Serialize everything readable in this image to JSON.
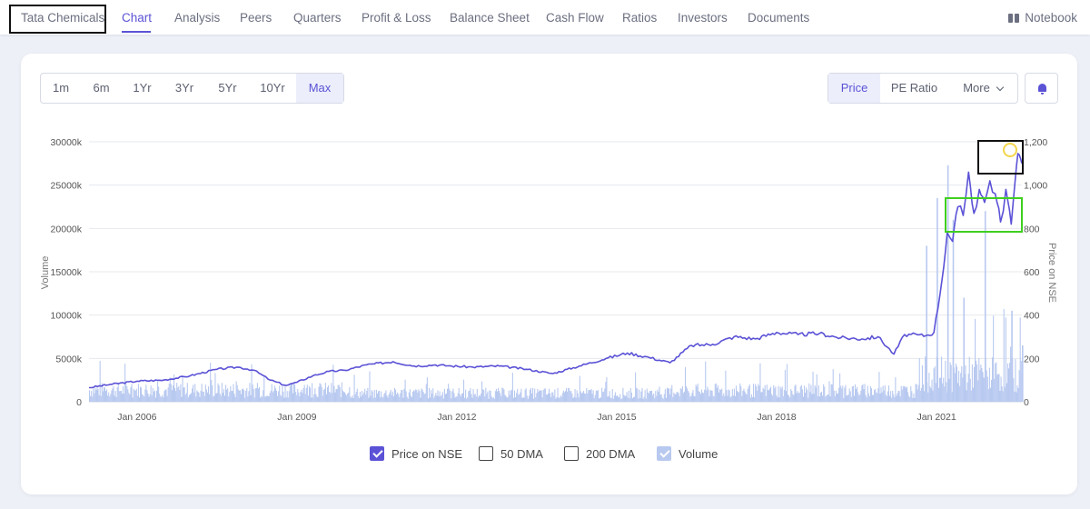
{
  "nav": {
    "company": "Tata Chemicals",
    "items": [
      "Chart",
      "Analysis",
      "Peers",
      "Quarters",
      "Profit & Loss",
      "Balance Sheet",
      "Cash Flow",
      "Ratios",
      "Investors",
      "Documents"
    ],
    "active": "Chart",
    "notebook": "Notebook"
  },
  "ranges": {
    "items": [
      "1m",
      "6m",
      "1Yr",
      "3Yr",
      "5Yr",
      "10Yr",
      "Max"
    ],
    "active": "Max"
  },
  "modes": {
    "price": "Price",
    "pe": "PE Ratio",
    "more": "More",
    "active": "Price"
  },
  "legend": {
    "price": "Price on NSE",
    "dma50": "50 DMA",
    "dma200": "200 DMA",
    "volume": "Volume",
    "checked": {
      "price": true,
      "dma50": false,
      "dma200": false,
      "volume": true
    }
  },
  "colors": {
    "accent": "#5b52d6",
    "volume": "#b8c9f0",
    "highlight_green": "#3fcf1f",
    "highlight_black": "#111111",
    "marker_yellow": "#f2d64b"
  },
  "chart_data": {
    "type": "line",
    "xlabel": "",
    "ylabel_left": "Volume",
    "ylabel_right": "Price on NSE",
    "x_ticks": [
      "Jan 2006",
      "Jan 2009",
      "Jan 2012",
      "Jan 2015",
      "Jan 2018",
      "Jan 2021"
    ],
    "x_range": [
      2005.1,
      2022.6
    ],
    "y_left_ticks": [
      "0",
      "5000k",
      "10000k",
      "15000k",
      "20000k",
      "25000k",
      "30000k"
    ],
    "y_left_range": [
      0,
      30000
    ],
    "y_right_ticks": [
      "0",
      "200",
      "400",
      "600",
      "800",
      "1,000",
      "1,200"
    ],
    "y_right_range": [
      0,
      1200
    ],
    "grid": true,
    "legend_position": "bottom",
    "series": [
      {
        "name": "Price on NSE",
        "x": [
          2005.1,
          2005.5,
          2006.0,
          2006.5,
          2007.0,
          2007.5,
          2007.9,
          2008.2,
          2008.5,
          2008.8,
          2009.0,
          2009.3,
          2009.6,
          2009.9,
          2010.3,
          2010.8,
          2011.2,
          2011.6,
          2011.9,
          2012.3,
          2012.8,
          2013.3,
          2013.8,
          2014.3,
          2014.8,
          2015.2,
          2015.6,
          2016.0,
          2016.4,
          2016.8,
          2017.2,
          2017.6,
          2018.0,
          2018.4,
          2018.8,
          2019.2,
          2019.6,
          2019.9,
          2020.2,
          2020.4,
          2020.8,
          2020.95,
          2021.1,
          2021.2,
          2021.3,
          2021.4,
          2021.5,
          2021.6,
          2021.7,
          2021.8,
          2021.9,
          2022.0,
          2022.1,
          2022.2,
          2022.3,
          2022.4,
          2022.5,
          2022.55,
          2022.6
        ],
        "y": [
          65,
          80,
          95,
          100,
          120,
          150,
          160,
          145,
          100,
          75,
          90,
          120,
          140,
          145,
          170,
          185,
          165,
          170,
          165,
          160,
          165,
          150,
          130,
          165,
          200,
          225,
          205,
          180,
          260,
          265,
          300,
          290,
          320,
          310,
          315,
          295,
          290,
          300,
          220,
          310,
          305,
          320,
          560,
          780,
          740,
          900,
          860,
          1060,
          870,
          980,
          920,
          1020,
          960,
          830,
          980,
          820,
          1090,
          1140,
          1100
        ]
      },
      {
        "name": "Volume",
        "peaks": [
          {
            "x": 2020.8,
            "y": 18000
          },
          {
            "x": 2021.0,
            "y": 23500
          },
          {
            "x": 2021.2,
            "y": 27300
          },
          {
            "x": 2021.3,
            "y": 21000
          },
          {
            "x": 2021.5,
            "y": 12000
          },
          {
            "x": 2021.9,
            "y": 22000
          },
          {
            "x": 2022.4,
            "y": 10500
          },
          {
            "x": 2022.6,
            "y": 6500
          }
        ]
      }
    ]
  }
}
